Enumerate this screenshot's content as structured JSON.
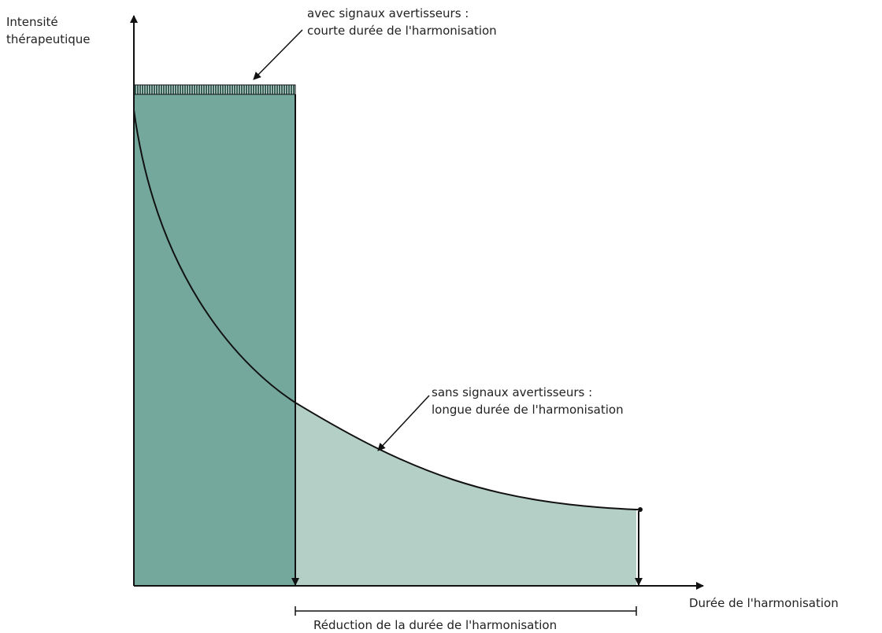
{
  "axes": {
    "y_label_line1": "Intensité",
    "y_label_line2": "thérapeutique",
    "x_label": "Durée de l'harmonisation"
  },
  "annotations": {
    "with_signals_line1": "avec signaux avertisseurs :",
    "with_signals_line2": "courte durée de l'harmonisation",
    "without_signals_line1": "sans signaux avertisseurs :",
    "without_signals_line2": "longue durée de l'harmonisation",
    "reduction": "Réduction de la durée de l'harmonisation"
  },
  "colors": {
    "dark_fill": "#74a89c",
    "light_fill": "#b4cfc6",
    "stroke": "#111111",
    "background": "#ffffff"
  }
}
